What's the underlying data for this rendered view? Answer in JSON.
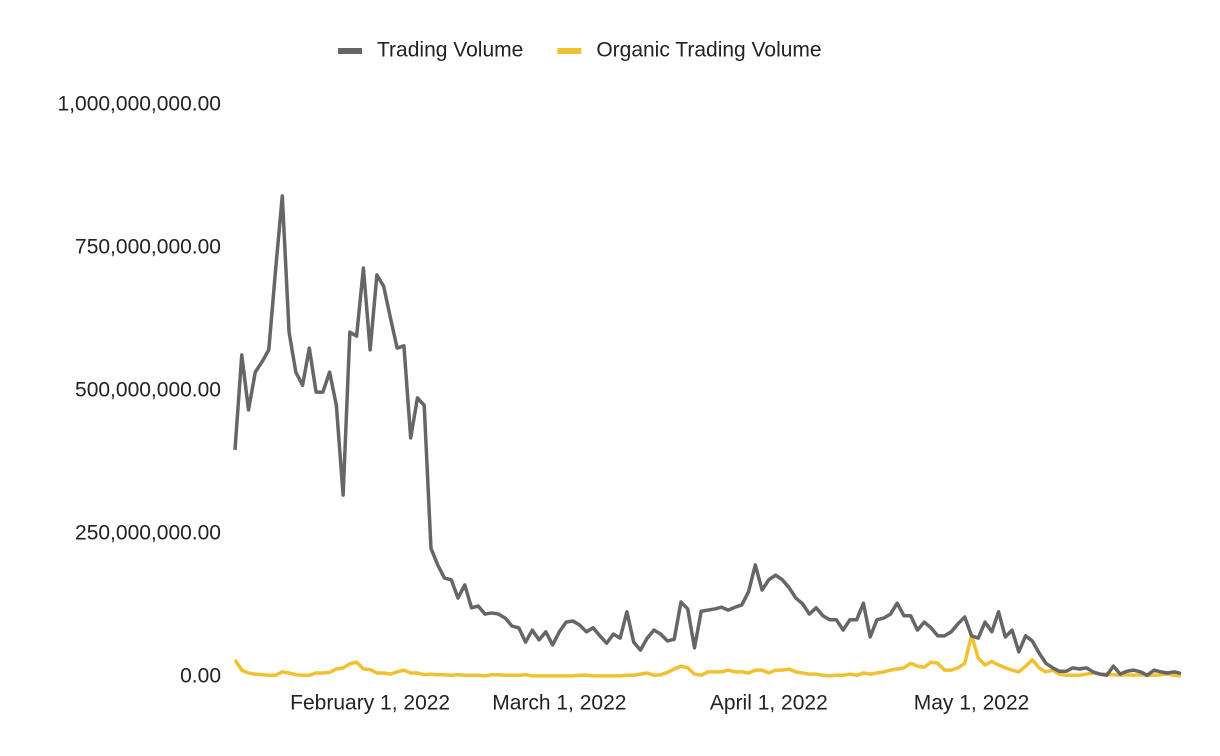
{
  "chart_data": {
    "type": "line",
    "x": [
      "2022-01-12",
      "2022-01-13",
      "2022-01-14",
      "2022-01-15",
      "2022-01-16",
      "2022-01-17",
      "2022-01-18",
      "2022-01-19",
      "2022-01-20",
      "2022-01-21",
      "2022-01-22",
      "2022-01-23",
      "2022-01-24",
      "2022-01-25",
      "2022-01-26",
      "2022-01-27",
      "2022-01-28",
      "2022-01-29",
      "2022-01-30",
      "2022-01-31",
      "2022-02-01",
      "2022-02-02",
      "2022-02-03",
      "2022-02-04",
      "2022-02-05",
      "2022-02-06",
      "2022-02-07",
      "2022-02-08",
      "2022-02-09",
      "2022-02-10",
      "2022-02-11",
      "2022-02-12",
      "2022-02-13",
      "2022-02-14",
      "2022-02-15",
      "2022-02-16",
      "2022-02-17",
      "2022-02-18",
      "2022-02-19",
      "2022-02-20",
      "2022-02-21",
      "2022-02-22",
      "2022-02-23",
      "2022-02-24",
      "2022-02-25",
      "2022-02-26",
      "2022-02-27",
      "2022-02-28",
      "2022-03-01",
      "2022-03-02",
      "2022-03-03",
      "2022-03-04",
      "2022-03-05",
      "2022-03-06",
      "2022-03-07",
      "2022-03-08",
      "2022-03-09",
      "2022-03-10",
      "2022-03-11",
      "2022-03-12",
      "2022-03-13",
      "2022-03-14",
      "2022-03-15",
      "2022-03-16",
      "2022-03-17",
      "2022-03-18",
      "2022-03-19",
      "2022-03-20",
      "2022-03-21",
      "2022-03-22",
      "2022-03-23",
      "2022-03-24",
      "2022-03-25",
      "2022-03-26",
      "2022-03-27",
      "2022-03-28",
      "2022-03-29",
      "2022-03-30",
      "2022-03-31",
      "2022-04-01",
      "2022-04-02",
      "2022-04-03",
      "2022-04-04",
      "2022-04-05",
      "2022-04-06",
      "2022-04-07",
      "2022-04-08",
      "2022-04-09",
      "2022-04-10",
      "2022-04-11",
      "2022-04-12",
      "2022-04-13",
      "2022-04-14",
      "2022-04-15",
      "2022-04-16",
      "2022-04-17",
      "2022-04-18",
      "2022-04-19",
      "2022-04-20",
      "2022-04-21",
      "2022-04-22",
      "2022-04-23",
      "2022-04-24",
      "2022-04-25",
      "2022-04-26",
      "2022-04-27",
      "2022-04-28",
      "2022-04-29",
      "2022-04-30",
      "2022-05-01",
      "2022-05-02",
      "2022-05-03",
      "2022-05-04",
      "2022-05-05",
      "2022-05-06",
      "2022-05-07",
      "2022-05-08",
      "2022-05-09",
      "2022-05-10",
      "2022-05-11",
      "2022-05-12",
      "2022-05-13",
      "2022-05-14",
      "2022-05-15",
      "2022-05-16",
      "2022-05-17",
      "2022-05-18",
      "2022-05-19",
      "2022-05-20",
      "2022-05-21",
      "2022-05-22",
      "2022-05-23",
      "2022-05-24",
      "2022-05-25",
      "2022-05-26",
      "2022-05-27",
      "2022-05-28",
      "2022-05-29",
      "2022-05-30",
      "2022-05-31",
      "2022-06-01"
    ],
    "series": [
      {
        "name": "Trading Volume",
        "color": "#666666",
        "values": [
          397000000,
          563000000,
          467000000,
          533000000,
          551000000,
          572000000,
          711000000,
          841000000,
          603000000,
          533000000,
          510000000,
          575000000,
          498000000,
          498000000,
          533000000,
          475000000,
          318000000,
          603000000,
          596000000,
          715000000,
          572000000,
          703000000,
          683000000,
          628000000,
          575000000,
          579000000,
          418000000,
          488000000,
          475000000,
          225000000,
          196000000,
          173000000,
          170000000,
          138000000,
          161000000,
          121000000,
          124000000,
          110000000,
          112000000,
          110000000,
          103000000,
          89000000,
          86000000,
          61000000,
          82000000,
          65000000,
          79000000,
          56000000,
          79000000,
          96000000,
          98000000,
          91000000,
          79000000,
          86000000,
          72000000,
          59000000,
          75000000,
          68000000,
          114000000,
          61000000,
          47000000,
          68000000,
          82000000,
          75000000,
          63000000,
          66000000,
          131000000,
          119000000,
          51000000,
          115000000,
          117000000,
          119000000,
          122000000,
          117000000,
          122000000,
          126000000,
          149000000,
          196000000,
          152000000,
          170000000,
          178000000,
          170000000,
          156000000,
          138000000,
          128000000,
          110000000,
          121000000,
          107000000,
          100000000,
          100000000,
          82000000,
          100000000,
          100000000,
          129000000,
          70000000,
          100000000,
          103000000,
          110000000,
          129000000,
          107000000,
          107000000,
          82000000,
          96000000,
          86000000,
          72000000,
          72000000,
          79000000,
          93000000,
          105000000,
          72000000,
          68000000,
          96000000,
          79000000,
          114000000,
          70000000,
          82000000,
          44000000,
          72000000,
          63000000,
          42000000,
          24000000,
          16000000,
          10000000,
          10000000,
          16000000,
          14000000,
          16000000,
          9000000,
          5000000,
          3000000,
          19000000,
          5000000,
          10000000,
          12000000,
          9000000,
          3000000,
          12000000,
          9000000,
          7000000,
          9000000,
          6000000
        ]
      },
      {
        "name": "Organic Trading Volume",
        "color": "#f0c232",
        "values": [
          30000000,
          12000000,
          7000000,
          5000000,
          4000000,
          3000000,
          3000000,
          9000000,
          7000000,
          4000000,
          3000000,
          3000000,
          7000000,
          7000000,
          8000000,
          14000000,
          16000000,
          23000000,
          26000000,
          14000000,
          13000000,
          7000000,
          7000000,
          5000000,
          9000000,
          12000000,
          7000000,
          7000000,
          4000000,
          5000000,
          4000000,
          4000000,
          3000000,
          4000000,
          3000000,
          3000000,
          3000000,
          2000000,
          4000000,
          4000000,
          3000000,
          3000000,
          3000000,
          4000000,
          2000000,
          2000000,
          2000000,
          2000000,
          2000000,
          2000000,
          2000000,
          3000000,
          3000000,
          2000000,
          2000000,
          2000000,
          2000000,
          2000000,
          3000000,
          3000000,
          5000000,
          7000000,
          3000000,
          4000000,
          8000000,
          14000000,
          19000000,
          16000000,
          5000000,
          3000000,
          9000000,
          9000000,
          9000000,
          12000000,
          9000000,
          9000000,
          7000000,
          12000000,
          12000000,
          7000000,
          12000000,
          12000000,
          14000000,
          9000000,
          7000000,
          5000000,
          5000000,
          3000000,
          2000000,
          3000000,
          3000000,
          5000000,
          3000000,
          7000000,
          5000000,
          7000000,
          9000000,
          12000000,
          14000000,
          16000000,
          24000000,
          19000000,
          17000000,
          26000000,
          24000000,
          12000000,
          12000000,
          16000000,
          24000000,
          73000000,
          33000000,
          21000000,
          27000000,
          21000000,
          16000000,
          12000000,
          9000000,
          19000000,
          30000000,
          16000000,
          9000000,
          12000000,
          5000000,
          3000000,
          3000000,
          3000000,
          5000000,
          7000000,
          5000000,
          5000000,
          4000000,
          3000000,
          4000000,
          3000000,
          4000000,
          3000000,
          3000000,
          4000000,
          5000000,
          3000000,
          2000000
        ]
      }
    ],
    "xlim": [
      "2022-01-12",
      "2022-06-01"
    ],
    "xticks": [
      {
        "value": "2022-02-01",
        "label": "February 1, 2022"
      },
      {
        "value": "2022-03-01",
        "label": "March 1, 2022"
      },
      {
        "value": "2022-04-01",
        "label": "April 1, 2022"
      },
      {
        "value": "2022-05-01",
        "label": "May 1, 2022"
      }
    ],
    "ylim": [
      0,
      1000000000
    ],
    "yticks": [
      {
        "value": 0,
        "label": "0.00"
      },
      {
        "value": 250000000,
        "label": "250,000,000.00"
      },
      {
        "value": 500000000,
        "label": "500,000,000.00"
      },
      {
        "value": 750000000,
        "label": "750,000,000.00"
      },
      {
        "value": 1000000000,
        "label": "1,000,000,000.00"
      }
    ],
    "grid": false,
    "legend": "top"
  }
}
